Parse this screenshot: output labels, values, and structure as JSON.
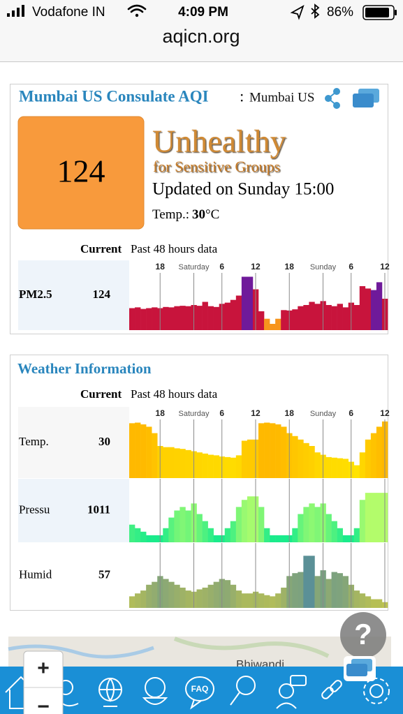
{
  "status_bar": {
    "carrier": "Vodafone IN",
    "time": "4:09 PM",
    "battery": "86%"
  },
  "url": "aqicn.org",
  "aqi_card": {
    "title": "Mumbai US Consulate AQI",
    "title_sep": ":",
    "station": "Mumbai US",
    "aqi": 124,
    "level": "Unhealthy",
    "level_sub": "for Sensitive Groups",
    "updated": "Updated on Sunday 15:00",
    "temp_label": "Temp.:",
    "temp_value": 30,
    "temp_unit": "°C",
    "current_label": "Current",
    "past_label": "Past 48 hours data",
    "categories": [
      null,
      null,
      null,
      null,
      null,
      "18",
      null,
      null,
      null,
      null,
      null,
      "Saturday",
      null,
      null,
      null,
      null,
      "6",
      null,
      null,
      null,
      null,
      null,
      "12",
      null,
      null,
      null,
      null,
      null,
      "18",
      null,
      null,
      null,
      null,
      null,
      "Sunday",
      null,
      null,
      null,
      null,
      "6",
      null,
      null,
      null,
      null,
      null,
      "12"
    ],
    "rows": [
      {
        "label": "PM2.5",
        "current": 124,
        "ylim": [
          0,
          160
        ],
        "values": [
          56,
          58,
          54,
          56,
          58,
          56,
          59,
          58,
          61,
          62,
          61,
          64,
          62,
          72,
          61,
          59,
          67,
          70,
          77,
          88,
          136,
          136,
          104,
          48,
          29,
          16,
          29,
          51,
          50,
          53,
          61,
          64,
          72,
          67,
          74,
          64,
          61,
          67,
          58,
          70,
          64,
          112,
          106,
          102,
          122,
          80
        ],
        "bar_colors": [
          "#c8143c",
          "#c8143c",
          "#c8143c",
          "#c8143c",
          "#c8143c",
          "#c8143c",
          "#c8143c",
          "#c8143c",
          "#c8143c",
          "#c8143c",
          "#c8143c",
          "#c8143c",
          "#c8143c",
          "#c8143c",
          "#c8143c",
          "#c8143c",
          "#c8143c",
          "#c8143c",
          "#c8143c",
          "#c8143c",
          "#6f1a9a",
          "#6f1a9a",
          "#c8143c",
          "#c8143c",
          "#f7941d",
          "#f7941d",
          "#f7941d",
          "#c8143c",
          "#c8143c",
          "#c8143c",
          "#c8143c",
          "#c8143c",
          "#c8143c",
          "#c8143c",
          "#c8143c",
          "#c8143c",
          "#c8143c",
          "#c8143c",
          "#c8143c",
          "#c8143c",
          "#c8143c",
          "#c8143c",
          "#c8143c",
          "#6f1a9a",
          "#6f1a9a",
          "#c8143c"
        ]
      }
    ]
  },
  "weather_card": {
    "title": "Weather Information",
    "current_label": "Current",
    "past_label": "Past 48 hours data",
    "categories": [
      null,
      null,
      null,
      null,
      null,
      "18",
      null,
      null,
      null,
      null,
      null,
      "Saturday",
      null,
      null,
      null,
      null,
      "6",
      null,
      null,
      null,
      null,
      null,
      "12",
      null,
      null,
      null,
      null,
      null,
      "18",
      null,
      null,
      null,
      null,
      null,
      "Sunday",
      null,
      null,
      null,
      null,
      "6",
      null,
      null,
      null,
      null,
      null,
      "12"
    ],
    "rows": [
      {
        "label": "Temp.",
        "current": 30,
        "ylim": [
          20,
          31
        ],
        "colors": [
          "#fff000",
          "#ffb000"
        ],
        "values": [
          29.4,
          29.5,
          29.2,
          28.8,
          27.7,
          25.5,
          25.3,
          25.3,
          25.1,
          25,
          24.8,
          24.6,
          24.4,
          24.2,
          24,
          23.9,
          23.7,
          23.6,
          23.5,
          23.9,
          26.4,
          26.6,
          26.6,
          29.4,
          29.5,
          29.4,
          29.2,
          28.8,
          27.7,
          27.2,
          26.6,
          26,
          25.5,
          24.4,
          24,
          23.6,
          23.5,
          23.4,
          23.3,
          22.8,
          22.2,
          24.4,
          26.6,
          27.7,
          28.8,
          29.7
        ]
      },
      {
        "label": "Pressu",
        "current": 1011,
        "ylim": [
          1004,
          1012
        ],
        "colors": [
          "#00e890",
          "#ccff66"
        ],
        "values": [
          1006.5,
          1006,
          1005.5,
          1005,
          1005,
          1005,
          1006,
          1007.5,
          1008.5,
          1009,
          1008.5,
          1009.5,
          1008,
          1007,
          1006,
          1005,
          1005,
          1006,
          1007,
          1009,
          1010,
          1010.5,
          1010.5,
          1009,
          1006,
          1005,
          1005,
          1005,
          1005,
          1006,
          1008,
          1009,
          1009.5,
          1009,
          1009.5,
          1008,
          1007,
          1006,
          1005,
          1005,
          1006,
          1010,
          1011,
          1011,
          1011,
          1011
        ]
      },
      {
        "label": "Humid",
        "current": 57,
        "ylim": [
          0,
          100
        ],
        "colors": [
          "#c8c848",
          "#4f8aa0"
        ],
        "values": [
          20,
          25,
          30,
          40,
          45,
          55,
          50,
          45,
          40,
          35,
          30,
          28,
          32,
          35,
          40,
          45,
          50,
          48,
          40,
          30,
          25,
          25,
          28,
          25,
          22,
          20,
          25,
          35,
          55,
          60,
          62,
          90,
          90,
          55,
          65,
          50,
          62,
          60,
          55,
          40,
          30,
          25,
          20,
          15,
          15,
          10
        ]
      }
    ]
  },
  "map_label": "Bhiwandi",
  "zoom": {
    "in": "+",
    "out": "−"
  },
  "help": "?",
  "toolbar": {
    "faq": "FAQ"
  }
}
